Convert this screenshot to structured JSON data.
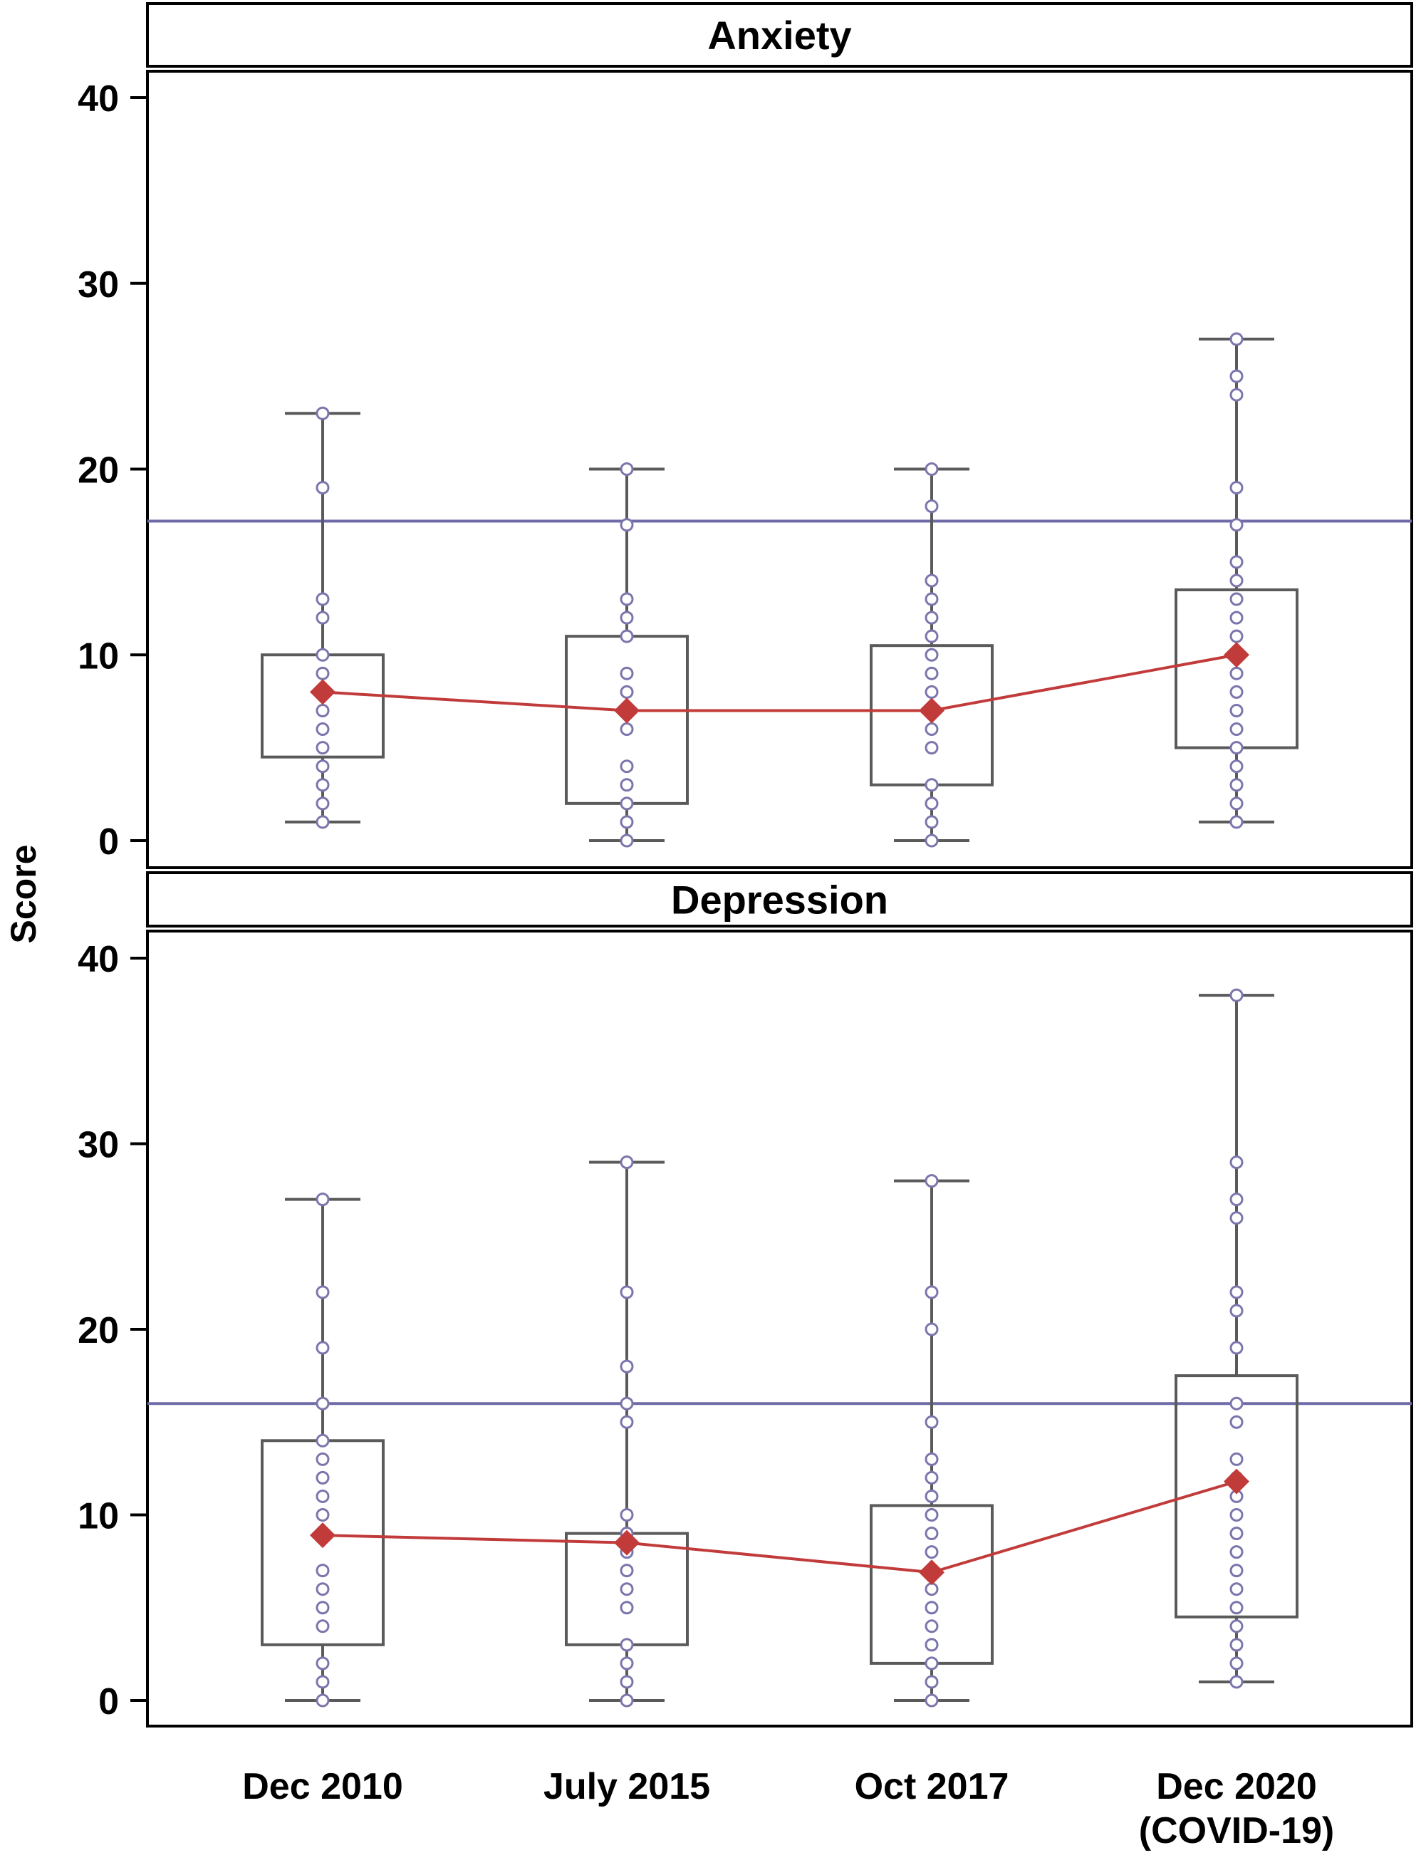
{
  "colors": {
    "box": "#5a5a5a",
    "dots": "#7a76ac",
    "mean": "#c23b3b",
    "threshold": "#6f6aa8",
    "frame": "#000000"
  },
  "chart_data": {
    "type": "box",
    "ylabel": "Score",
    "categories": [
      "Dec 2010",
      "July 2015",
      "Oct 2017",
      [
        "Dec 2020",
        "(COVID-19)"
      ]
    ],
    "ylim": [
      0,
      42
    ],
    "yticks": [
      0,
      10,
      20,
      30,
      40
    ],
    "panels": [
      {
        "title": "Anxiety",
        "threshold": 17.2,
        "series": [
          {
            "whisker_low": 1,
            "q1": 4.5,
            "q3": 10,
            "whisker_high": 23,
            "mean": 8,
            "points": [
              1,
              2,
              3,
              4,
              5,
              6,
              7,
              8,
              9,
              10,
              12,
              13,
              19,
              23
            ]
          },
          {
            "whisker_low": 0,
            "q1": 2,
            "q3": 11,
            "whisker_high": 20,
            "mean": 7,
            "points": [
              0,
              1,
              2,
              3,
              4,
              6,
              7,
              8,
              9,
              11,
              12,
              13,
              17,
              20
            ]
          },
          {
            "whisker_low": 0,
            "q1": 3,
            "q3": 10.5,
            "whisker_high": 20,
            "mean": 7,
            "points": [
              0,
              1,
              2,
              3,
              5,
              6,
              7,
              8,
              9,
              10,
              11,
              12,
              13,
              14,
              18,
              20
            ]
          },
          {
            "whisker_low": 1,
            "q1": 5,
            "q3": 13.5,
            "whisker_high": 27,
            "mean": 10,
            "points": [
              1,
              2,
              3,
              4,
              5,
              6,
              7,
              8,
              9,
              10,
              11,
              12,
              13,
              14,
              15,
              17,
              19,
              24,
              25,
              27
            ]
          }
        ]
      },
      {
        "title": "Depression",
        "threshold": 16,
        "series": [
          {
            "whisker_low": 0,
            "q1": 3,
            "q3": 14,
            "whisker_high": 27,
            "mean": 8.9,
            "points": [
              0,
              1,
              2,
              4,
              5,
              6,
              7,
              9,
              10,
              11,
              12,
              13,
              14,
              16,
              19,
              22,
              27
            ]
          },
          {
            "whisker_low": 0,
            "q1": 3,
            "q3": 9,
            "whisker_high": 29,
            "mean": 8.5,
            "points": [
              0,
              1,
              2,
              3,
              5,
              6,
              7,
              8,
              9,
              10,
              15,
              16,
              18,
              22,
              29
            ]
          },
          {
            "whisker_low": 0,
            "q1": 2,
            "q3": 10.5,
            "whisker_high": 28,
            "mean": 6.9,
            "points": [
              0,
              1,
              2,
              3,
              4,
              5,
              6,
              7,
              8,
              9,
              10,
              11,
              12,
              13,
              15,
              20,
              22,
              28
            ]
          },
          {
            "whisker_low": 1,
            "q1": 4.5,
            "q3": 17.5,
            "whisker_high": 38,
            "mean": 11.8,
            "points": [
              1,
              2,
              3,
              4,
              5,
              6,
              7,
              8,
              9,
              10,
              11,
              12,
              13,
              15,
              16,
              19,
              21,
              22,
              26,
              27,
              29,
              38
            ]
          }
        ]
      }
    ]
  }
}
